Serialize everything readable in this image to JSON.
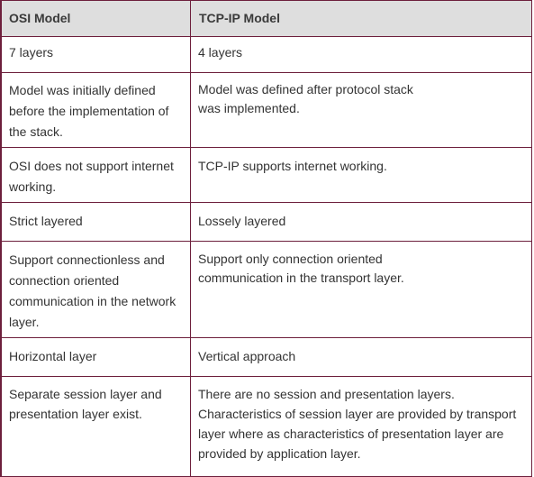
{
  "table": {
    "headers": [
      "OSI Model",
      "TCP-IP Model"
    ],
    "rows": [
      {
        "osi": "7 layers",
        "tcpip": "4 layers"
      },
      {
        "osi": "Model was initially defined before the implementation of the stack.",
        "tcpip": "Model was defined after protocol stack was implemented."
      },
      {
        "osi": "OSI does not support internet working.",
        "tcpip": "TCP-IP supports internet working."
      },
      {
        "osi": "Strict layered",
        "tcpip": "Lossely layered"
      },
      {
        "osi": "Support connectionless and connection oriented communication in the network layer.",
        "tcpip": "Support only connection oriented communication in the transport layer."
      },
      {
        "osi": "Horizontal layer",
        "tcpip": "Vertical approach"
      },
      {
        "osi": "Separate session layer and presentation layer exist.",
        "tcpip": "There are no session and presentation layers. Characteristics of session layer are provided by transport layer where as characteristics  of presentation layer are provided by application layer."
      }
    ]
  },
  "colors": {
    "border": "#6d1f3c",
    "header_bg": "#dedede",
    "text": "#333333"
  }
}
